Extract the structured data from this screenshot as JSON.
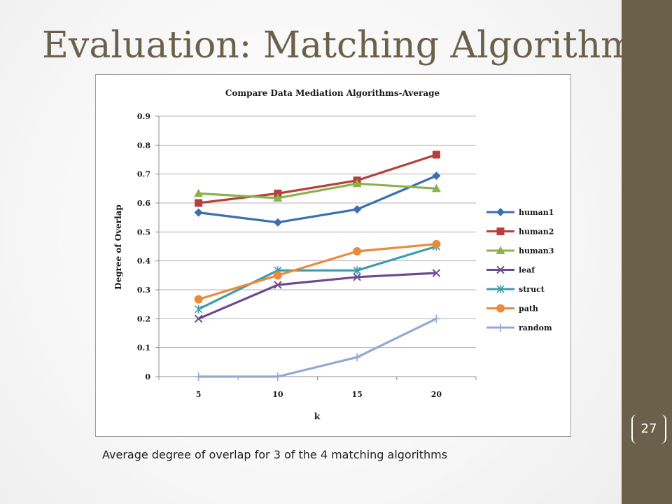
{
  "slide": {
    "title": "Evaluation: Matching Algorithms",
    "caption": "Average degree of overlap for 3 of the 4 matching algorithms",
    "page_number": "27",
    "colors": {
      "title": "#6b614a",
      "sidebar": "#6b614a",
      "background": "#ffffff"
    }
  },
  "chart_data": {
    "type": "line",
    "title": "Compare Data Mediation Algorithms-Average",
    "xlabel": "k",
    "ylabel": "Degree of Overlap",
    "categories": [
      "5",
      "10",
      "15",
      "20"
    ],
    "ylim": [
      0,
      0.9
    ],
    "yticks": [
      "0",
      "0.1",
      "0.2",
      "0.3",
      "0.4",
      "0.5",
      "0.6",
      "0.7",
      "0.8",
      "0.9"
    ],
    "grid": "horizontal",
    "legend_position": "right",
    "series": [
      {
        "name": "human1",
        "color": "#3a6fb0",
        "marker": "diamond",
        "values": [
          0.567,
          0.533,
          0.578,
          0.694
        ]
      },
      {
        "name": "human2",
        "color": "#b5403c",
        "marker": "square",
        "values": [
          0.6,
          0.633,
          0.678,
          0.767
        ]
      },
      {
        "name": "human3",
        "color": "#8bb14a",
        "marker": "triangle",
        "values": [
          0.633,
          0.617,
          0.667,
          0.65
        ]
      },
      {
        "name": "leaf",
        "color": "#6c4a8f",
        "marker": "x",
        "values": [
          0.2,
          0.317,
          0.344,
          0.358
        ]
      },
      {
        "name": "struct",
        "color": "#3d9cb0",
        "marker": "star",
        "values": [
          0.233,
          0.367,
          0.367,
          0.45
        ]
      },
      {
        "name": "path",
        "color": "#e98b3a",
        "marker": "circle",
        "values": [
          0.267,
          0.35,
          0.433,
          0.458
        ]
      },
      {
        "name": "random",
        "color": "#93a9d4",
        "marker": "plus",
        "values": [
          0,
          0,
          0.067,
          0.2
        ]
      }
    ]
  }
}
